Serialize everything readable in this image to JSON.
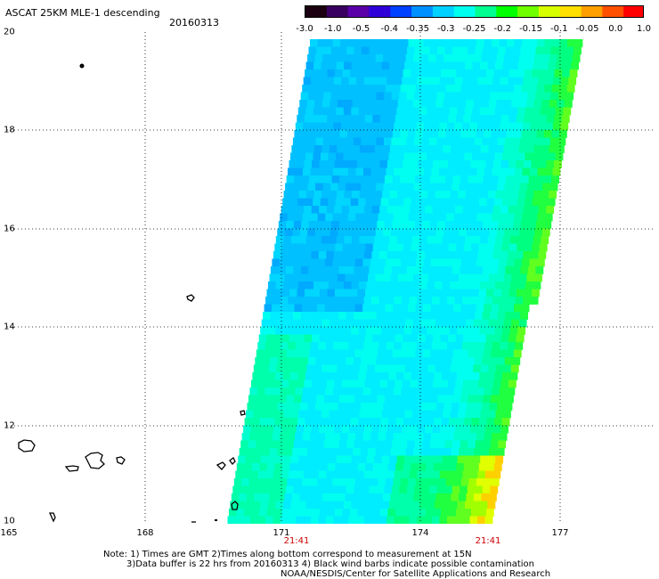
{
  "title": "ASCAT 25KM MLE-1 descending",
  "date": "20160313",
  "colorbar": {
    "labels": [
      "-3.0",
      "-1.0",
      "-0.5",
      "-0.4",
      "-0.35",
      "-0.3",
      "-0.25",
      "-0.2",
      "-0.15",
      "-0.1",
      "-0.05",
      "0.0",
      "1.0"
    ],
    "colors": [
      "#1a0010",
      "#3a0060",
      "#5a00a8",
      "#3000d8",
      "#0040ff",
      "#0090ff",
      "#00d0ff",
      "#00ffee",
      "#00ff90",
      "#00ff00",
      "#70ff00",
      "#d8ff00",
      "#ffe000",
      "#ffa000",
      "#ff5000",
      "#ff0000"
    ]
  },
  "axes": {
    "lat_labels": [
      "20",
      "18",
      "16",
      "14",
      "12",
      "10"
    ],
    "lon_labels": [
      "165",
      "168",
      "171",
      "174",
      "177"
    ],
    "time_labels": [
      "21:41",
      "21:41"
    ],
    "lat_range": [
      10,
      20
    ],
    "lon_range": [
      165,
      179.3
    ],
    "grid": "dotted"
  },
  "notes": [
    "Note: 1) Times are GMT 2)Times along bottom correspond to measurement at 15N",
    "3)Data buffer is 22 hrs from 20160313 4) Black wind barbs indicate possible contamination",
    "NOAA/NESDIS/Center for Satellite Applications and Research"
  ]
}
